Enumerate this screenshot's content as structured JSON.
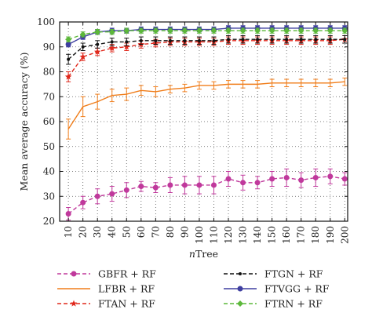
{
  "chart_data": {
    "type": "line",
    "xlabel_italic": "n",
    "xlabel_rest": "Tree",
    "ylabel": "Mean average accuracy (%)",
    "ylim": [
      20,
      100
    ],
    "yticks": [
      20,
      30,
      40,
      50,
      60,
      70,
      80,
      90,
      100
    ],
    "x": [
      10,
      20,
      30,
      40,
      50,
      60,
      70,
      80,
      90,
      100,
      110,
      120,
      130,
      140,
      150,
      160,
      170,
      180,
      190,
      200
    ],
    "grid": "dotted",
    "legend_placement": "bottom",
    "series": [
      {
        "name": "GBFR + RF",
        "color": "#c0399c",
        "line": "dashed",
        "marker": "circle",
        "values": [
          23,
          27.5,
          30,
          31,
          32.5,
          34,
          33.5,
          34.5,
          34.5,
          34.5,
          34.5,
          37,
          35.5,
          35.5,
          37,
          37.5,
          36.5,
          37.5,
          38,
          37
        ],
        "errors": [
          2.5,
          2.5,
          3,
          3,
          3,
          2,
          2,
          3,
          3.5,
          3.5,
          3.5,
          3,
          3,
          2.5,
          3,
          3.5,
          3,
          3.5,
          3,
          2.5
        ]
      },
      {
        "name": "LFBR + RF",
        "color": "#f07d1a",
        "line": "solid",
        "marker": "none",
        "values": [
          57,
          66,
          68,
          70.5,
          71,
          72.5,
          72,
          73,
          73.5,
          74.5,
          74.5,
          75,
          75,
          75,
          75.5,
          75.5,
          75.5,
          75.5,
          75.5,
          76
        ],
        "errors": [
          4,
          4,
          3,
          2.5,
          2.5,
          2,
          2,
          1.5,
          1.5,
          1.5,
          1.5,
          1.5,
          1.5,
          1.5,
          1.5,
          1.5,
          1.5,
          1.5,
          1.5,
          1.5
        ]
      },
      {
        "name": "FTAN + RF",
        "color": "#e0281c",
        "line": "dashed",
        "marker": "star",
        "values": [
          78,
          86,
          88,
          89.5,
          90,
          91,
          91.5,
          92,
          92,
          92,
          92,
          92.5,
          92.5,
          92.5,
          92.5,
          92.5,
          92.5,
          92.5,
          92.5,
          93
        ],
        "errors": [
          2,
          1.5,
          1.5,
          1.5,
          1.5,
          1.5,
          1.5,
          1.5,
          1.5,
          1.5,
          1.5,
          1.5,
          1.5,
          1.5,
          1.5,
          1.5,
          1.5,
          1.5,
          1.5,
          1.5
        ]
      },
      {
        "name": "FTGN + RF",
        "color": "#111111",
        "line": "dashed",
        "marker": "dot",
        "values": [
          85,
          90,
          91,
          92,
          92,
          92.5,
          92.5,
          92.5,
          92.5,
          92.5,
          92.5,
          93,
          93,
          93,
          93,
          93,
          93,
          93,
          93,
          93
        ],
        "errors": [
          2,
          1.5,
          1.5,
          1.5,
          1.5,
          1.5,
          1.5,
          1.5,
          1.5,
          1.5,
          1.5,
          1.5,
          1.5,
          1.5,
          1.5,
          1.5,
          1.5,
          1.5,
          1.5,
          1.5
        ]
      },
      {
        "name": "FTVGG + RF",
        "color": "#3f3fa0",
        "line": "solid",
        "marker": "circle",
        "values": [
          91,
          94,
          96,
          96.5,
          96.5,
          97,
          97,
          97,
          97,
          97,
          97,
          97.5,
          97.5,
          97.5,
          97.5,
          97.5,
          97.5,
          97.5,
          97.5,
          97.5
        ],
        "errors": [
          1,
          1,
          1,
          1,
          1,
          1,
          1,
          1,
          1,
          1,
          1,
          1,
          1,
          1,
          1,
          1,
          1,
          1,
          1,
          1
        ]
      },
      {
        "name": "FTRN + RF",
        "color": "#5cb83a",
        "line": "dashed",
        "marker": "diamond",
        "values": [
          93,
          95,
          96,
          96,
          96.5,
          96.5,
          96.5,
          96.5,
          96.5,
          96.5,
          96.5,
          96.5,
          96.5,
          96.5,
          96.5,
          96.5,
          96.5,
          96.5,
          96.5,
          96.5
        ],
        "errors": [
          1,
          1,
          1,
          1,
          1,
          1,
          1,
          1,
          1,
          1,
          1,
          1,
          1,
          1,
          1,
          1,
          1,
          1,
          1,
          1
        ]
      }
    ]
  }
}
